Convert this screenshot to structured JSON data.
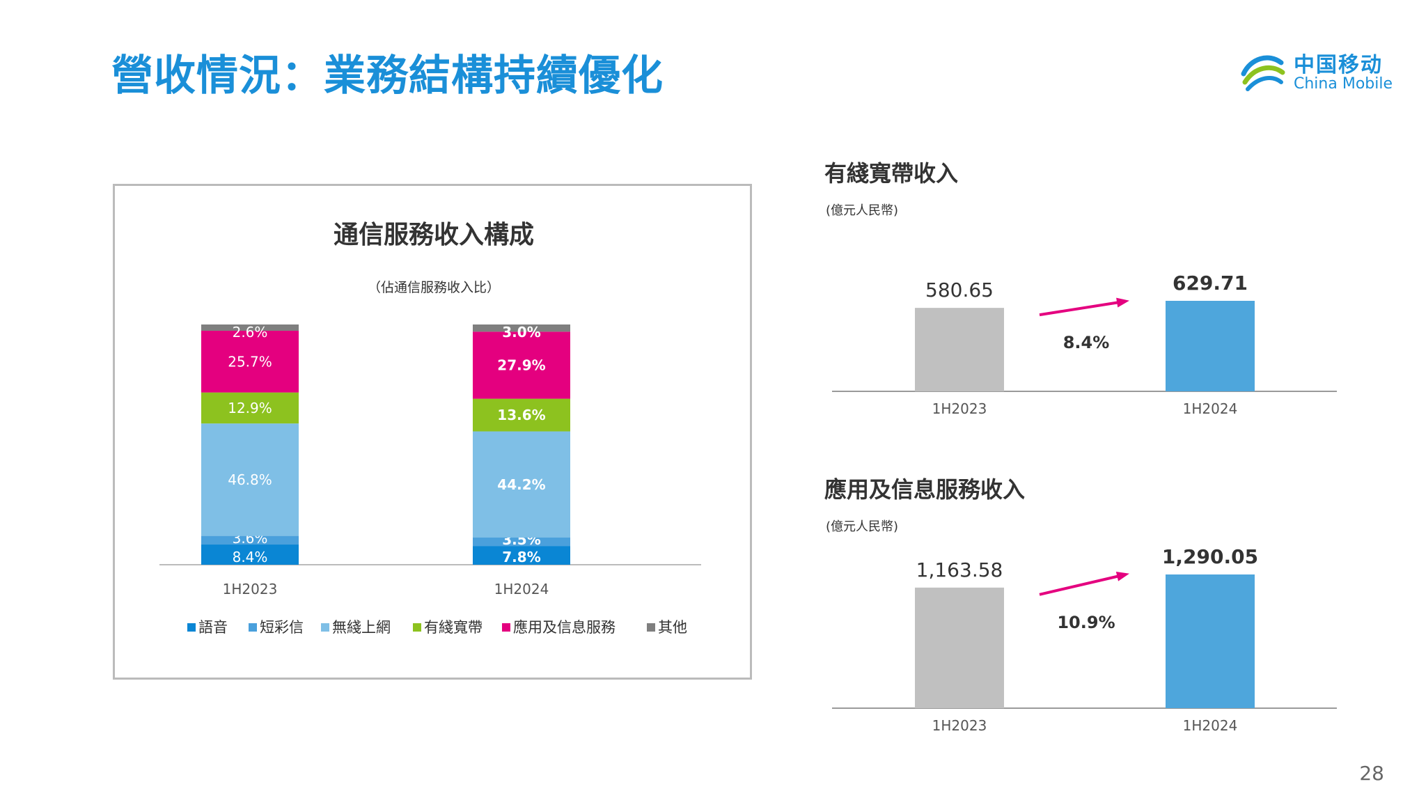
{
  "page": {
    "title": "營收情況：業務結構持續優化",
    "logo_zh": "中国移动",
    "logo_en": "China Mobile",
    "page_number": "28"
  },
  "colors": {
    "title_blue": "#1a8fd8",
    "voice": "#0a86d4",
    "sms": "#4aa0dc",
    "wireless": "#7fbfe6",
    "broadband": "#8dc21f",
    "app_info": "#e4007f",
    "other": "#7f7f7f",
    "bar_grey": "#c0c0c0",
    "bar_blue": "#4ea6dc",
    "arrow": "#e4007f"
  },
  "chart_data": [
    {
      "type": "bar",
      "stacked": true,
      "title": "通信服務收入構成",
      "subtitle": "（佔通信服務收入比）",
      "unit": "%",
      "categories": [
        "1H2023",
        "1H2024"
      ],
      "series": [
        {
          "name": "語音",
          "values": [
            8.4,
            7.8
          ],
          "labels": [
            "8.4%",
            "7.8%"
          ],
          "color": "#0a86d4"
        },
        {
          "name": "短彩信",
          "values": [
            3.6,
            3.5
          ],
          "labels": [
            "3.6%",
            "3.5%"
          ],
          "color": "#4aa0dc"
        },
        {
          "name": "無綫上網",
          "values": [
            46.8,
            44.2
          ],
          "labels": [
            "46.8%",
            "44.2%"
          ],
          "color": "#7fbfe6"
        },
        {
          "name": "有綫寬帶",
          "values": [
            12.9,
            13.6
          ],
          "labels": [
            "12.9%",
            "13.6%"
          ],
          "color": "#8dc21f"
        },
        {
          "name": "應用及信息服務",
          "values": [
            25.7,
            27.9
          ],
          "labels": [
            "25.7%",
            "27.9%"
          ],
          "color": "#e4007f"
        },
        {
          "name": "其他",
          "values": [
            2.6,
            3.0
          ],
          "labels": [
            "2.6%",
            "3.0%"
          ],
          "color": "#7f7f7f"
        }
      ],
      "ylim": [
        0,
        100
      ],
      "legend_position": "bottom",
      "grid": false
    },
    {
      "type": "bar",
      "title": "有綫寬帶收入",
      "subtitle": "(億元人民幣)",
      "categories": [
        "1H2023",
        "1H2024"
      ],
      "values": [
        580.65,
        629.71
      ],
      "value_labels": [
        "580.65",
        "629.71"
      ],
      "growth_label": "8.4%",
      "ylim": [
        0,
        629.71
      ],
      "grid": false
    },
    {
      "type": "bar",
      "title": "應用及信息服務收入",
      "subtitle": "(億元人民幣)",
      "categories": [
        "1H2023",
        "1H2024"
      ],
      "values": [
        1163.58,
        1290.05
      ],
      "value_labels": [
        "1,163.58",
        "1,290.05"
      ],
      "growth_label": "10.9%",
      "ylim": [
        0,
        1290.05
      ],
      "grid": false
    }
  ]
}
